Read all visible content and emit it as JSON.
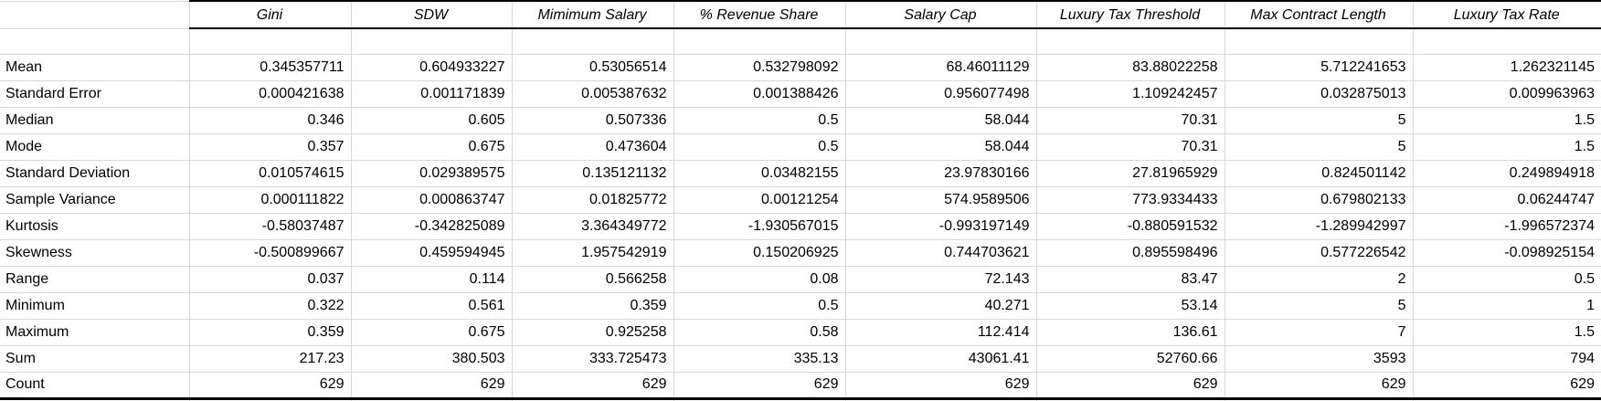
{
  "table": {
    "columns": [
      "Gini",
      "SDW",
      "Mimimum Salary",
      "% Revenue Share",
      "Salary Cap",
      "Luxury Tax Threshold",
      "Max Contract Length",
      "Luxury Tax Rate"
    ],
    "rows": [
      {
        "label": "Mean",
        "values": [
          "0.345357711",
          "0.604933227",
          "0.53056514",
          "0.532798092",
          "68.46011129",
          "83.88022258",
          "5.712241653",
          "1.262321145"
        ]
      },
      {
        "label": "Standard Error",
        "values": [
          "0.000421638",
          "0.001171839",
          "0.005387632",
          "0.001388426",
          "0.956077498",
          "1.109242457",
          "0.032875013",
          "0.009963963"
        ]
      },
      {
        "label": "Median",
        "values": [
          "0.346",
          "0.605",
          "0.507336",
          "0.5",
          "58.044",
          "70.31",
          "5",
          "1.5"
        ]
      },
      {
        "label": "Mode",
        "values": [
          "0.357",
          "0.675",
          "0.473604",
          "0.5",
          "58.044",
          "70.31",
          "5",
          "1.5"
        ]
      },
      {
        "label": "Standard Deviation",
        "values": [
          "0.010574615",
          "0.029389575",
          "0.135121132",
          "0.03482155",
          "23.97830166",
          "27.81965929",
          "0.824501142",
          "0.249894918"
        ]
      },
      {
        "label": "Sample Variance",
        "values": [
          "0.000111822",
          "0.000863747",
          "0.01825772",
          "0.00121254",
          "574.9589506",
          "773.9334433",
          "0.679802133",
          "0.06244747"
        ]
      },
      {
        "label": "Kurtosis",
        "values": [
          "-0.58037487",
          "-0.342825089",
          "3.364349772",
          "-1.930567015",
          "-0.993197149",
          "-0.880591532",
          "-1.289942997",
          "-1.996572374"
        ]
      },
      {
        "label": "Skewness",
        "values": [
          "-0.500899667",
          "0.459594945",
          "1.957542919",
          "0.150206925",
          "0.744703621",
          "0.895598496",
          "0.577226542",
          "-0.098925154"
        ]
      },
      {
        "label": "Range",
        "values": [
          "0.037",
          "0.114",
          "0.566258",
          "0.08",
          "72.143",
          "83.47",
          "2",
          "0.5"
        ]
      },
      {
        "label": "Minimum",
        "values": [
          "0.322",
          "0.561",
          "0.359",
          "0.5",
          "40.271",
          "53.14",
          "5",
          "1"
        ]
      },
      {
        "label": "Maximum",
        "values": [
          "0.359",
          "0.675",
          "0.925258",
          "0.58",
          "112.414",
          "136.61",
          "7",
          "1.5"
        ]
      },
      {
        "label": "Sum",
        "values": [
          "217.23",
          "380.503",
          "333.725473",
          "335.13",
          "43061.41",
          "52760.66",
          "3593",
          "794"
        ]
      },
      {
        "label": "Count",
        "values": [
          "629",
          "629",
          "629",
          "629",
          "629",
          "629",
          "629",
          "629"
        ]
      }
    ]
  }
}
